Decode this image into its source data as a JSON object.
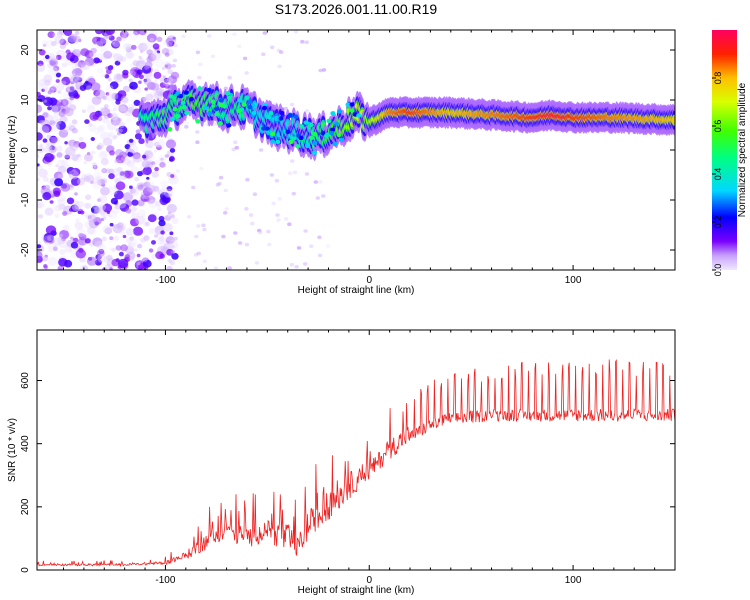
{
  "title": "S173.2026.001.11.00.R19",
  "chart_data": [
    {
      "type": "heatmap",
      "title": "",
      "xlabel": "Height of straight line (km)",
      "ylabel": "Frequency (Hz)",
      "xlim": [
        -163,
        150
      ],
      "ylim": [
        -24,
        24
      ],
      "x_ticks": [
        -100,
        0,
        100
      ],
      "y_ticks": [
        -20,
        -10,
        0,
        10,
        20
      ],
      "colorbar": {
        "label": "Normalized spectral amplitude",
        "range": [
          0,
          1
        ],
        "ticks": [
          0.0,
          0.2,
          0.4,
          0.6,
          0.8
        ]
      },
      "ridge": {
        "x": [
          -112,
          -105,
          -100,
          -95,
          -90,
          -85,
          -80,
          -75,
          -70,
          -65,
          -60,
          -55,
          -50,
          -45,
          -40,
          -35,
          -30,
          -25,
          -20,
          -15,
          -10,
          -5,
          0,
          5,
          10,
          20,
          40,
          60,
          80,
          90,
          100,
          120,
          150
        ],
        "y": [
          6.0,
          6.0,
          7.0,
          8.5,
          9.5,
          9.0,
          10.0,
          9.0,
          8.0,
          9.0,
          8.0,
          7.0,
          5.5,
          4.5,
          4.0,
          3.5,
          3.0,
          2.5,
          3.5,
          4.5,
          6.0,
          7.0,
          5.5,
          6.5,
          7.5,
          7.5,
          7.5,
          7.0,
          6.5,
          7.0,
          6.5,
          6.5,
          6.0
        ],
        "amplitude": [
          0.45,
          0.5,
          0.55,
          0.5,
          0.55,
          0.6,
          0.55,
          0.5,
          0.45,
          0.5,
          0.45,
          0.4,
          0.4,
          0.35,
          0.4,
          0.4,
          0.45,
          0.5,
          0.55,
          0.6,
          0.65,
          0.7,
          0.65,
          0.75,
          0.85,
          0.9,
          0.8,
          0.85,
          0.9,
          0.95,
          0.9,
          0.85,
          0.8
        ]
      }
    },
    {
      "type": "line",
      "title": "",
      "xlabel": "Height of straight line (km)",
      "ylabel": "SNR (10 * v/v)",
      "xlim": [
        -163,
        150
      ],
      "ylim": [
        0,
        760
      ],
      "x_ticks": [
        -100,
        0,
        100
      ],
      "y_ticks": [
        0,
        200,
        400,
        600
      ],
      "series": [
        {
          "color": "#ee2222",
          "envelope": {
            "x": [
              -163,
              -120,
              -100,
              -90,
              -80,
              -70,
              -60,
              -50,
              -40,
              -35,
              -30,
              -20,
              -10,
              0,
              10,
              20,
              30,
              40,
              60,
              80,
              100,
              120,
              150
            ],
            "base": [
              15,
              15,
              20,
              40,
              80,
              110,
              90,
              110,
              80,
              60,
              120,
              180,
              250,
              300,
              370,
              420,
              460,
              480,
              490,
              490,
              490,
              490,
              490
            ],
            "peak": [
              30,
              32,
              45,
              100,
              200,
              250,
              240,
              260,
              300,
              200,
              340,
              350,
              440,
              420,
              520,
              560,
              600,
              620,
              650,
              660,
              660,
              670,
              660
            ]
          }
        }
      ]
    }
  ]
}
